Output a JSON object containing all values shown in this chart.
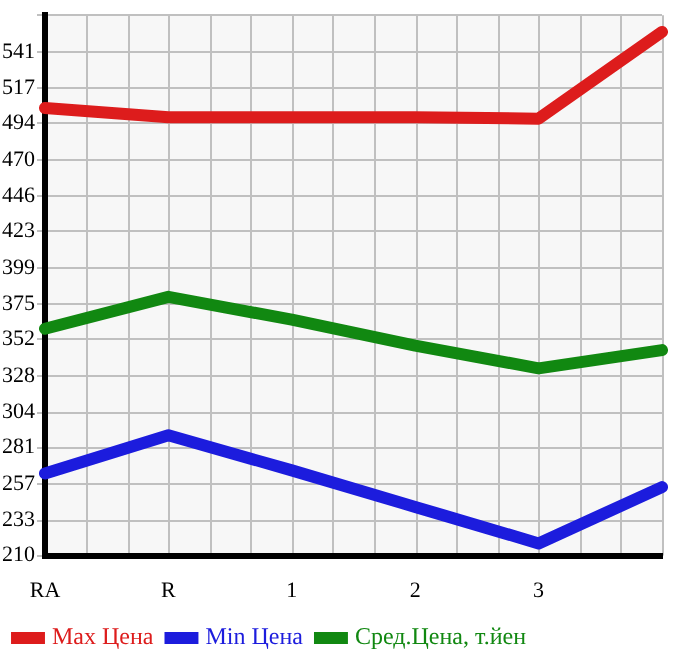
{
  "chart_data": {
    "type": "line",
    "categories": [
      "RA",
      "R",
      "1",
      "2",
      "3",
      null
    ],
    "series": [
      {
        "name": "Max Цена",
        "color": "#dd1c1c",
        "values": [
          504,
          498,
          498,
          498,
          497,
          554
        ]
      },
      {
        "name": "Min Цена",
        "color": "#1c1cdd",
        "values": [
          264,
          289,
          266,
          242,
          218,
          255
        ]
      },
      {
        "name": "Сред.Цена, т.йен",
        "color": "#118811",
        "values": [
          359,
          380,
          365,
          348,
          333,
          345
        ]
      }
    ],
    "ylim": [
      210,
      565
    ],
    "yticks": [
      210,
      233,
      257,
      281,
      304,
      328,
      352,
      375,
      399,
      423,
      446,
      470,
      494,
      517,
      541,
      {
        "value": 565,
        "label": null
      }
    ],
    "grid": true,
    "legend": "bottom",
    "marker": "none",
    "line_style": "solid"
  }
}
